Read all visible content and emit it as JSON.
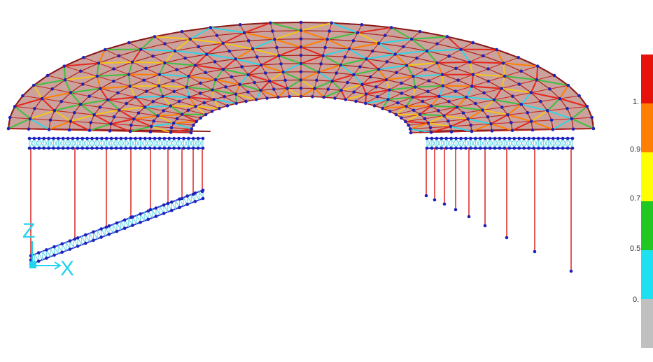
{
  "viewport": {
    "axes": {
      "vertical_label": "Z",
      "horizontal_label": "X",
      "color": "#22d3ee"
    },
    "colors": {
      "roof_fill": "#a0564a",
      "roof_edge": "#8b1a1a",
      "node": "#1e22b8",
      "column": "#e03030",
      "truss_chord": "#2a3bd6",
      "truss_web": "#5fd4e8"
    },
    "member_palette": [
      "#e8261c",
      "#f5c518",
      "#3fbf3f",
      "#2fd6e6",
      "#ff7f00"
    ]
  },
  "legend": {
    "bands": [
      {
        "color": "#e8120c"
      },
      {
        "color": "#ff7f00"
      },
      {
        "color": "#ffff00"
      },
      {
        "color": "#22c822"
      },
      {
        "color": "#1ee0f0"
      },
      {
        "color": "#c0c0c0"
      }
    ],
    "labels": [
      "1.",
      "0.9",
      "0.7",
      "0.5",
      "0."
    ]
  }
}
